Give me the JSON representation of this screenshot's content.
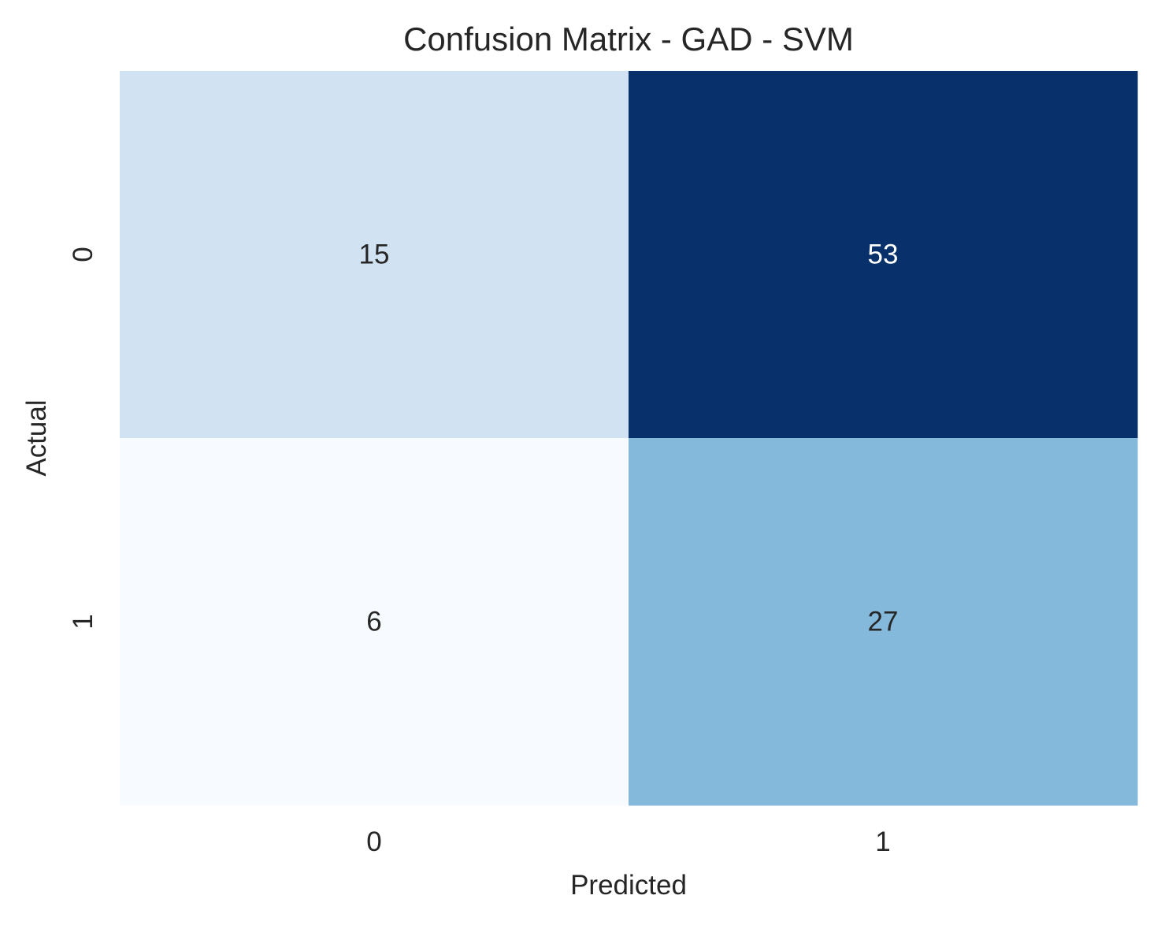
{
  "chart_data": {
    "type": "heatmap",
    "title": "Confusion Matrix - GAD - SVM",
    "xlabel": "Predicted",
    "ylabel": "Actual",
    "x_categories": [
      "0",
      "1"
    ],
    "y_categories": [
      "0",
      "1"
    ],
    "values": [
      [
        15,
        53
      ],
      [
        6,
        27
      ]
    ],
    "colormap": "Blues",
    "color_scale": {
      "low": "#f7fbff",
      "high": "#08306b"
    },
    "cell_colors": [
      [
        "#d1e2f2",
        "#08306b"
      ],
      [
        "#f7fbff",
        "#84b9dc"
      ]
    ],
    "text_colors": [
      [
        "#262626",
        "#ffffff"
      ],
      [
        "#262626",
        "#262626"
      ]
    ],
    "colorbar": false,
    "grid": false
  }
}
